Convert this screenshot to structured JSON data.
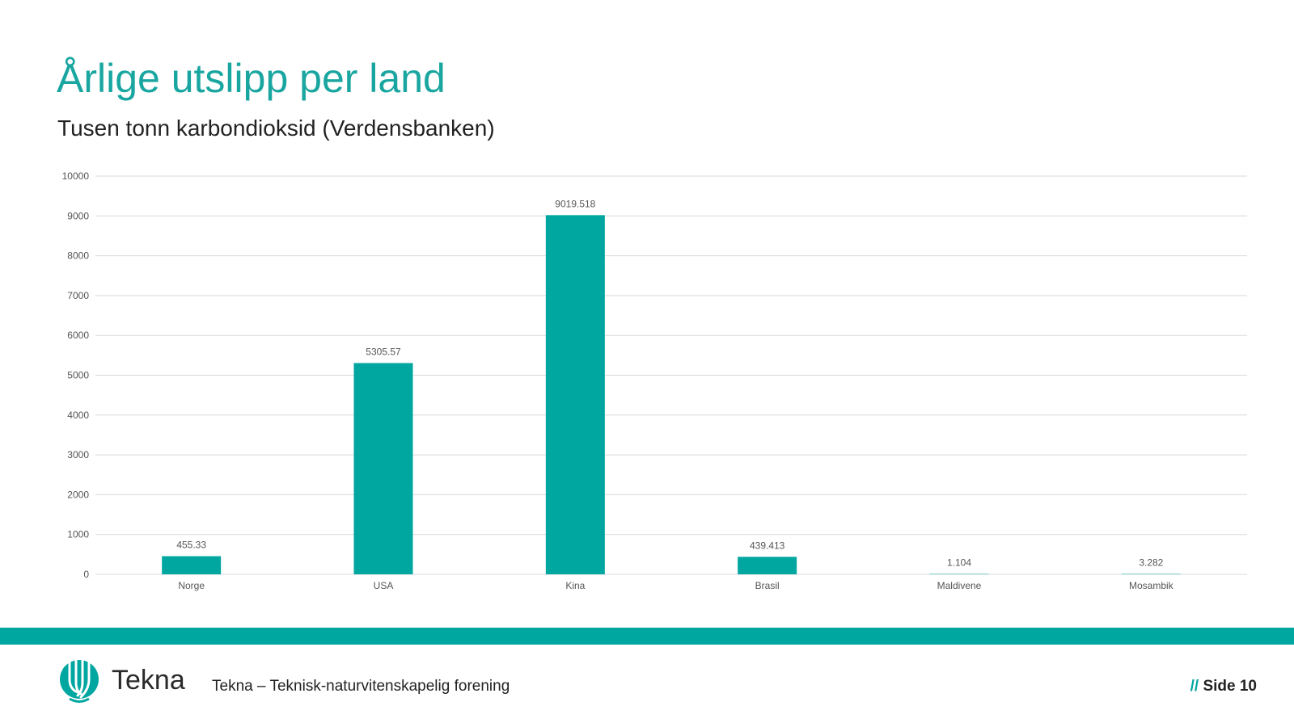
{
  "slide": {
    "title": "Årlige utslipp per land",
    "subtitle": "Tusen tonn karbondioksid (Verdensbanken)"
  },
  "footer": {
    "logo_text": "Tekna",
    "organization": "Tekna – Teknisk-naturvitenskapelig forening",
    "page_prefix": "//",
    "page_label": "Side 10"
  },
  "colors": {
    "accent": "#00a6a0",
    "title": "#1aa6a0",
    "bar": "#00a6a0",
    "grid": "#d9d9d9"
  },
  "chart_data": {
    "type": "bar",
    "categories": [
      "Norge",
      "USA",
      "Kina",
      "Brasil",
      "Maldivene",
      "Mosambik"
    ],
    "values": [
      455.33,
      5305.57,
      9019.518,
      439.413,
      1.104,
      3.282
    ],
    "value_labels": [
      "455.33",
      "5305.57",
      "9019.518",
      "439.413",
      "1.104",
      "3.282"
    ],
    "yticks": [
      0,
      1000,
      2000,
      3000,
      4000,
      5000,
      6000,
      7000,
      8000,
      9000,
      10000
    ],
    "ylim": [
      0,
      10000
    ],
    "grid": true,
    "legend": "none"
  }
}
